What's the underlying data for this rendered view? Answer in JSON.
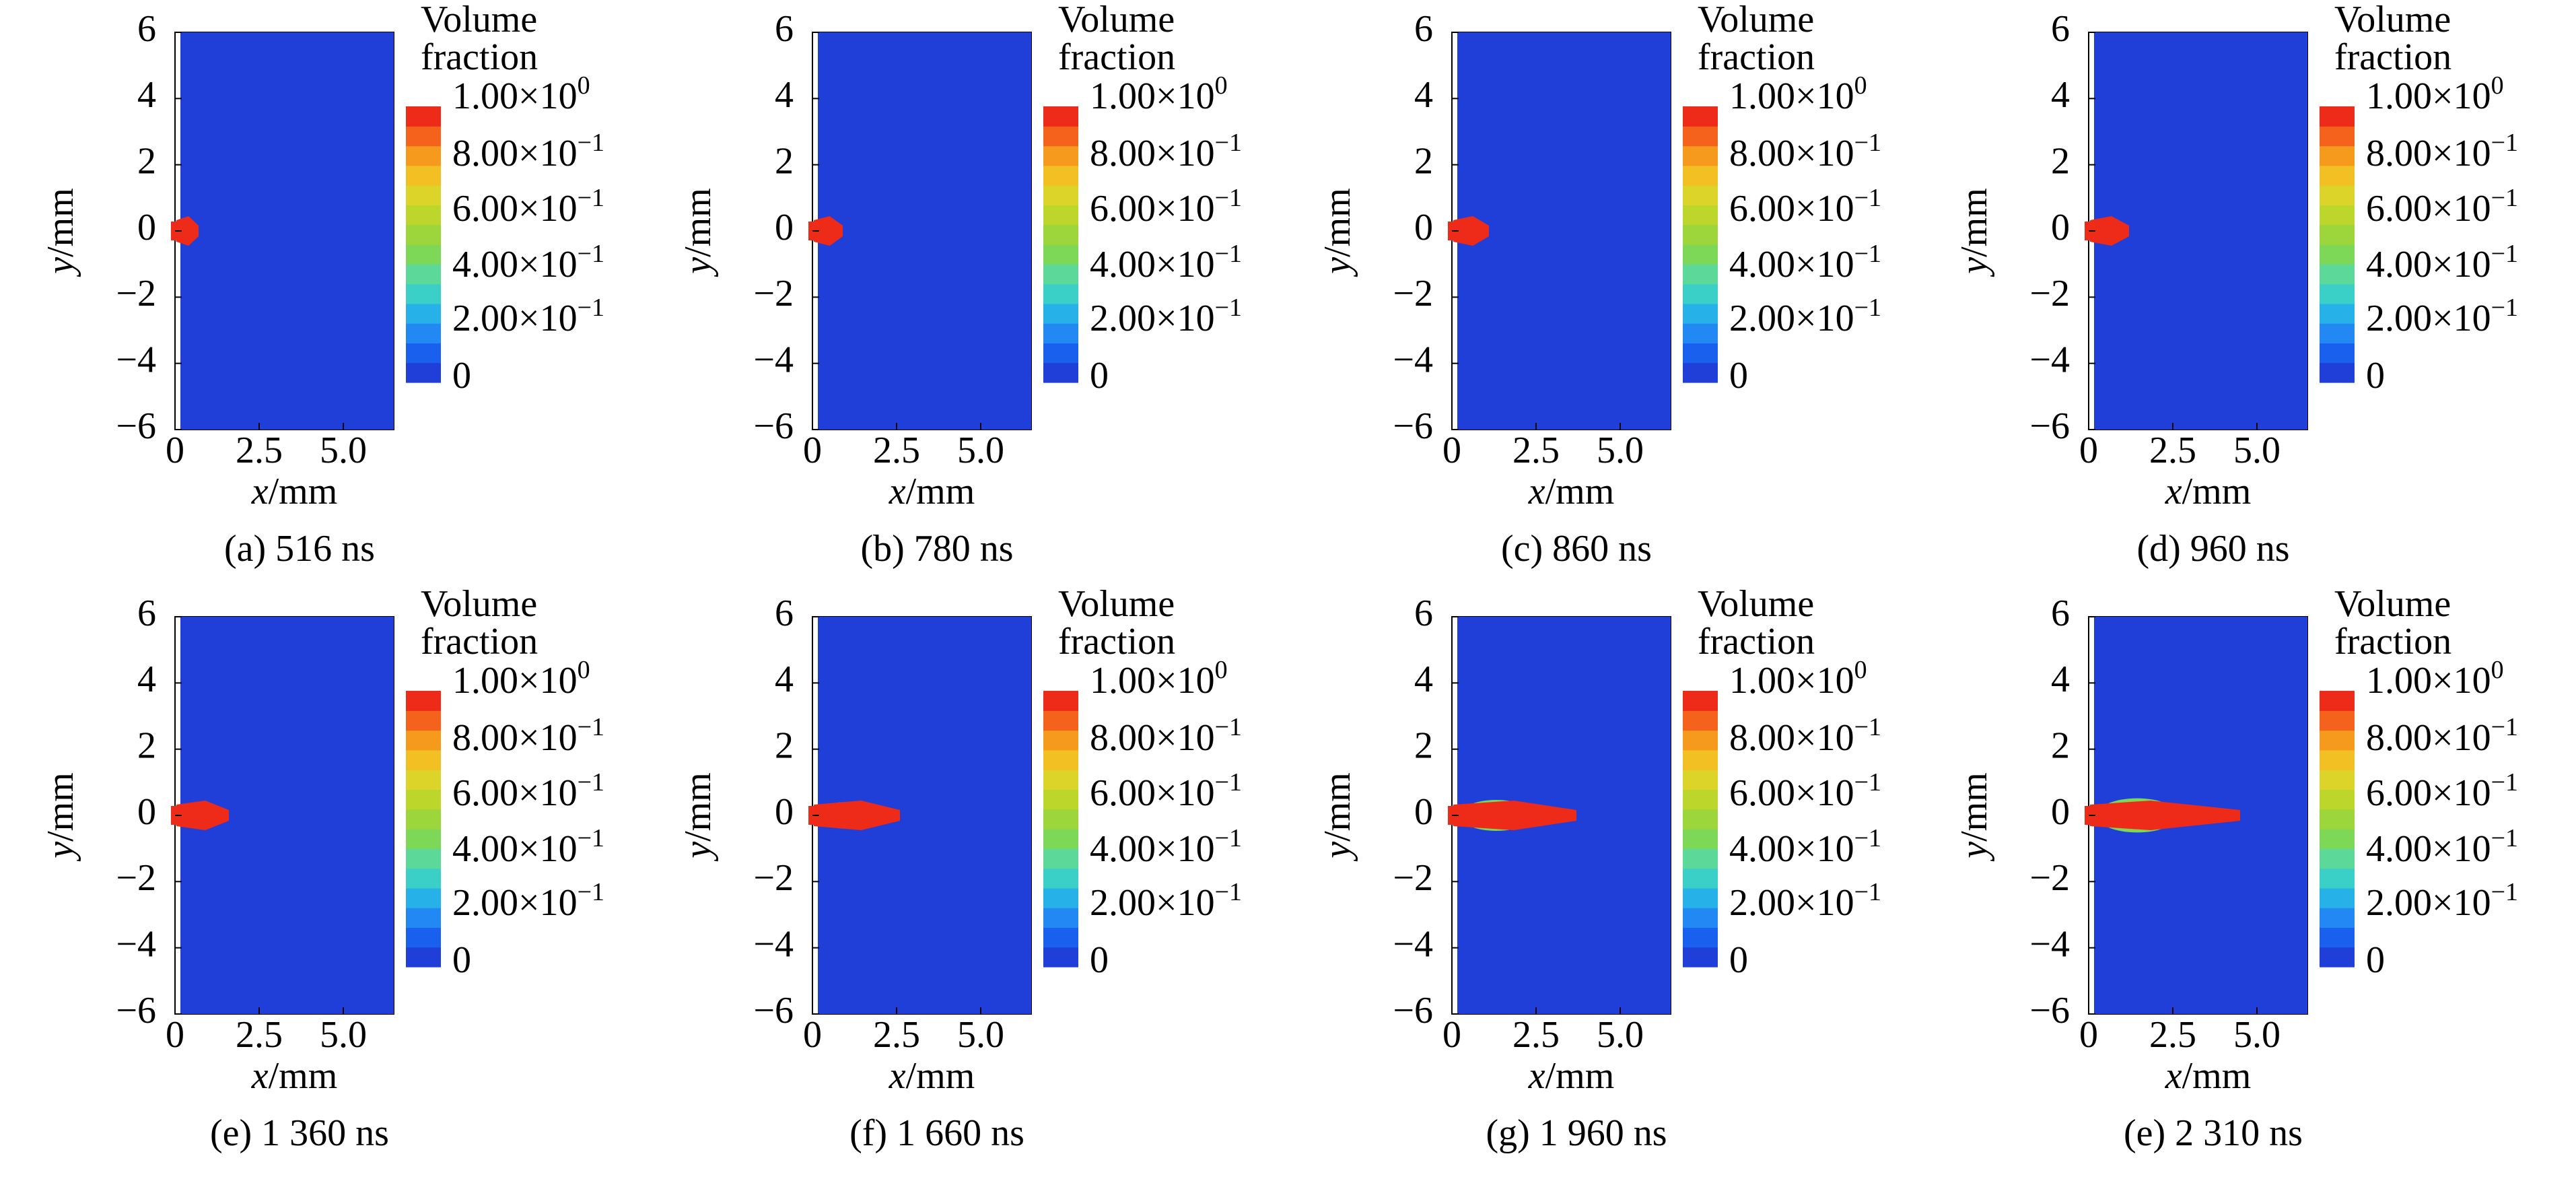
{
  "panels": [
    {
      "caption": "(a) 516 ns"
    },
    {
      "caption": "(b) 780 ns"
    },
    {
      "caption": "(c) 860 ns"
    },
    {
      "caption": "(d) 960 ns"
    },
    {
      "caption": "(e) 1 360 ns"
    },
    {
      "caption": "(f) 1 660 ns"
    },
    {
      "caption": "(g) 1 960 ns"
    },
    {
      "caption": "(e) 2 310 ns"
    }
  ],
  "axis": {
    "ylabel_italic": "y",
    "xlabel_italic": "x",
    "unit": "/mm",
    "yticks": [
      "6",
      "4",
      "2",
      "0",
      "−2",
      "−4",
      "−6"
    ],
    "xticks": [
      "0",
      "2.5",
      "5.0"
    ]
  },
  "colorbar": {
    "title_line1": "Volume",
    "title_line2": "fraction",
    "labels": [
      {
        "mant": "1.00×10",
        "exp": "0"
      },
      {
        "mant": "8.00×10",
        "exp": "−1"
      },
      {
        "mant": "6.00×10",
        "exp": "−1"
      },
      {
        "mant": "4.00×10",
        "exp": "−1"
      },
      {
        "mant": "2.00×10",
        "exp": "−1"
      },
      {
        "mant": "0",
        "exp": ""
      }
    ],
    "colors": [
      "#1f3fd8",
      "#1a60ee",
      "#2288f4",
      "#26b2e8",
      "#3ad0c8",
      "#5cd898",
      "#7ed858",
      "#9cd63a",
      "#bcd62c",
      "#dcd428",
      "#f2c022",
      "#f69a1e",
      "#f4621c",
      "#ee2a18"
    ]
  },
  "chart_data": [
    {
      "type": "heatmap",
      "caption": "(a) 516 ns",
      "time_ns": 516,
      "x_range": [
        0,
        6.5
      ],
      "y_range": [
        -6,
        6
      ],
      "xticks": [
        0,
        2.5,
        5.0
      ],
      "yticks": [
        6,
        4,
        2,
        0,
        -2,
        -4,
        -6
      ],
      "xlabel": "x/mm",
      "ylabel": "y/mm",
      "colorbar_range": [
        0,
        1.0
      ],
      "background_fraction": 0,
      "jet_length_mm": 0.7
    },
    {
      "type": "heatmap",
      "caption": "(b) 780 ns",
      "time_ns": 780,
      "x_range": [
        0,
        6.5
      ],
      "y_range": [
        -6,
        6
      ],
      "xticks": [
        0,
        2.5,
        5.0
      ],
      "yticks": [
        6,
        4,
        2,
        0,
        -2,
        -4,
        -6
      ],
      "xlabel": "x/mm",
      "ylabel": "y/mm",
      "colorbar_range": [
        0,
        1.0
      ],
      "background_fraction": 0,
      "jet_length_mm": 0.9
    },
    {
      "type": "heatmap",
      "caption": "(c) 860 ns",
      "time_ns": 860,
      "x_range": [
        0,
        6.5
      ],
      "y_range": [
        -6,
        6
      ],
      "xticks": [
        0,
        2.5,
        5.0
      ],
      "yticks": [
        6,
        4,
        2,
        0,
        -2,
        -4,
        -6
      ],
      "xlabel": "x/mm",
      "ylabel": "y/mm",
      "colorbar_range": [
        0,
        1.0
      ],
      "background_fraction": 0,
      "jet_length_mm": 1.1
    },
    {
      "type": "heatmap",
      "caption": "(d) 960 ns",
      "time_ns": 960,
      "x_range": [
        0,
        6.5
      ],
      "y_range": [
        -6,
        6
      ],
      "xticks": [
        0,
        2.5,
        5.0
      ],
      "yticks": [
        6,
        4,
        2,
        0,
        -2,
        -4,
        -6
      ],
      "xlabel": "x/mm",
      "ylabel": "y/mm",
      "colorbar_range": [
        0,
        1.0
      ],
      "background_fraction": 0,
      "jet_length_mm": 1.2
    },
    {
      "type": "heatmap",
      "caption": "(e) 1 360 ns",
      "time_ns": 1360,
      "x_range": [
        0,
        6.5
      ],
      "y_range": [
        -6,
        6
      ],
      "xticks": [
        0,
        2.5,
        5.0
      ],
      "yticks": [
        6,
        4,
        2,
        0,
        -2,
        -4,
        -6
      ],
      "xlabel": "x/mm",
      "ylabel": "y/mm",
      "colorbar_range": [
        0,
        1.0
      ],
      "background_fraction": 0,
      "jet_length_mm": 1.6
    },
    {
      "type": "heatmap",
      "caption": "(f) 1 660 ns",
      "time_ns": 1660,
      "x_range": [
        0,
        6.5
      ],
      "y_range": [
        -6,
        6
      ],
      "xticks": [
        0,
        2.5,
        5.0
      ],
      "yticks": [
        6,
        4,
        2,
        0,
        -2,
        -4,
        -6
      ],
      "xlabel": "x/mm",
      "ylabel": "y/mm",
      "colorbar_range": [
        0,
        1.0
      ],
      "background_fraction": 0,
      "jet_length_mm": 2.6
    },
    {
      "type": "heatmap",
      "caption": "(g) 1 960 ns",
      "time_ns": 1960,
      "x_range": [
        0,
        6.5
      ],
      "y_range": [
        -6,
        6
      ],
      "xticks": [
        0,
        2.5,
        5.0
      ],
      "yticks": [
        6,
        4,
        2,
        0,
        -2,
        -4,
        -6
      ],
      "xlabel": "x/mm",
      "ylabel": "y/mm",
      "colorbar_range": [
        0,
        1.0
      ],
      "background_fraction": 0,
      "jet_length_mm": 3.7
    },
    {
      "type": "heatmap",
      "caption": "(e) 2 310 ns",
      "time_ns": 2310,
      "x_range": [
        0,
        6.5
      ],
      "y_range": [
        -6,
        6
      ],
      "xticks": [
        0,
        2.5,
        5.0
      ],
      "yticks": [
        6,
        4,
        2,
        0,
        -2,
        -4,
        -6
      ],
      "xlabel": "x/mm",
      "ylabel": "y/mm",
      "colorbar_range": [
        0,
        1.0
      ],
      "background_fraction": 0,
      "jet_length_mm": 4.5
    }
  ]
}
